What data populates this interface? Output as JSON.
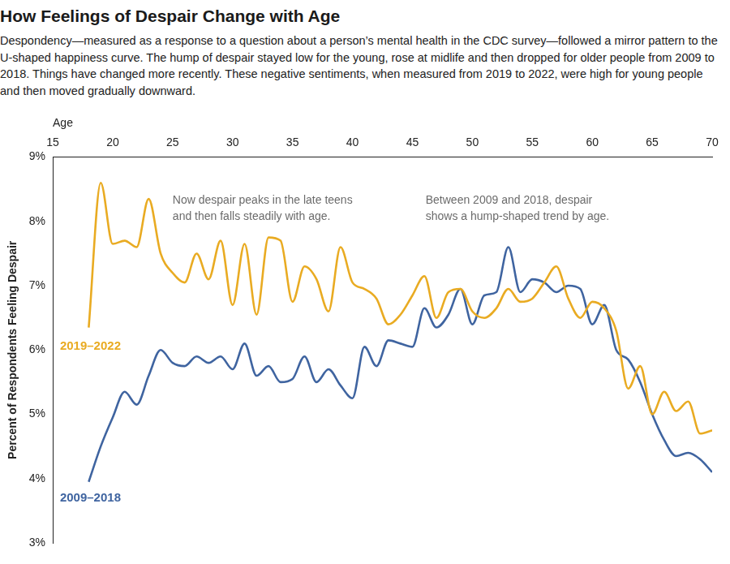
{
  "chart_data": {
    "type": "line",
    "title": "How Feelings of Despair Change with Age",
    "subtitle": "Despondency—measured as a response to a question about a person’s mental health in the CDC survey—followed a mirror pattern to the U-shaped happiness curve. The hump of despair stayed low for the young, rose at midlife and then dropped for older people from 2009 to 2018. Things have changed more recently. These negative sentiments, when measured from 2019 to 2022, were high for young people and then moved gradually downward.",
    "x_label": "Age",
    "y_label": "Percent of Respondents Feeling Despair",
    "annotations": [
      [
        "Now despair peaks in the late teens",
        "and then falls steadily with age."
      ],
      [
        "Between 2009 and 2018, despair",
        "shows a hump-shaped trend by age."
      ]
    ],
    "x": [
      18,
      19,
      20,
      21,
      22,
      23,
      24,
      25,
      26,
      27,
      28,
      29,
      30,
      31,
      32,
      33,
      34,
      35,
      36,
      37,
      38,
      39,
      40,
      41,
      42,
      43,
      44,
      45,
      46,
      47,
      48,
      49,
      50,
      51,
      52,
      53,
      54,
      55,
      56,
      57,
      58,
      59,
      60,
      61,
      62,
      63,
      64,
      65,
      66,
      67,
      68,
      69,
      70
    ],
    "series": [
      {
        "name": "2019–2022",
        "color": "#e9ab22",
        "values": [
          6.35,
          8.6,
          7.65,
          7.7,
          7.6,
          8.35,
          7.5,
          7.2,
          7.05,
          7.5,
          7.1,
          7.7,
          6.7,
          7.65,
          6.55,
          7.75,
          7.7,
          6.75,
          7.3,
          7.1,
          6.6,
          7.6,
          7.05,
          6.95,
          6.8,
          6.4,
          6.55,
          6.85,
          7.15,
          6.5,
          6.9,
          6.95,
          6.6,
          6.5,
          6.65,
          6.95,
          6.75,
          6.8,
          7.05,
          7.3,
          6.8,
          6.5,
          6.75,
          6.65,
          6.3,
          5.4,
          5.75,
          5.0,
          5.35,
          5.05,
          5.2,
          4.7,
          4.75
        ]
      },
      {
        "name": "2009–2018",
        "color": "#3f64a0",
        "values": [
          3.95,
          4.5,
          4.95,
          5.35,
          5.15,
          5.6,
          6.0,
          5.8,
          5.75,
          5.9,
          5.8,
          5.9,
          5.7,
          6.1,
          5.6,
          5.75,
          5.5,
          5.55,
          5.9,
          5.5,
          5.7,
          5.45,
          5.25,
          6.05,
          5.75,
          6.15,
          6.1,
          6.05,
          6.65,
          6.35,
          6.55,
          6.95,
          6.4,
          6.85,
          6.9,
          7.6,
          6.9,
          7.1,
          7.05,
          6.9,
          7.0,
          6.95,
          6.4,
          6.7,
          6.0,
          5.85,
          5.5,
          5.0,
          4.6,
          4.35,
          4.4,
          4.3,
          4.1
        ]
      }
    ],
    "xlim": [
      15,
      70
    ],
    "xticks": [
      15,
      20,
      25,
      30,
      35,
      40,
      45,
      50,
      55,
      60,
      65,
      70
    ],
    "ylim": [
      3,
      9
    ],
    "yticks": [
      {
        "value": 3,
        "label": "3%"
      },
      {
        "value": 4,
        "label": "4%"
      },
      {
        "value": 5,
        "label": "5%"
      },
      {
        "value": 6,
        "label": "6%"
      },
      {
        "value": 7,
        "label": "7%"
      },
      {
        "value": 8,
        "label": "8%"
      },
      {
        "value": 9,
        "label": "9%"
      }
    ],
    "grid": false
  }
}
